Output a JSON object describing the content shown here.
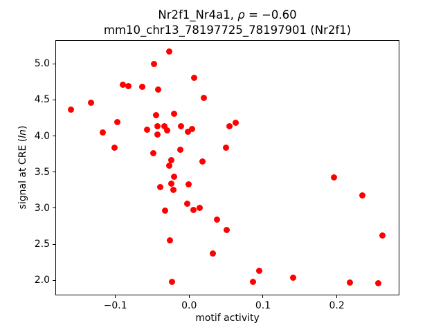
{
  "title": {
    "line1_prefix": "Nr2f1_Nr4a1, ",
    "line1_rho": "ρ",
    "line1_suffix": " = −0.60",
    "line2": "mm10_chr13_78197725_78197901 (Nr2f1)"
  },
  "axes": {
    "x_label": "motif activity",
    "y_label_prefix": "signal at CRE (",
    "y_label_italic": "ln",
    "y_label_suffix": ")"
  },
  "chart_data": {
    "type": "scatter",
    "title": "Nr2f1_Nr4a1, ρ = −0.60\nmm10_chr13_78197725_78197901 (Nr2f1)",
    "xlabel": "motif activity",
    "ylabel": "signal at CRE (ln)",
    "marker_color": "#ff0000",
    "marker_size_px": 9,
    "grid": false,
    "legend": null,
    "xlim": [
      -0.1812,
      0.2847
    ],
    "ylim": [
      1.792,
      5.329
    ],
    "x_ticks": [
      -0.1,
      0.0,
      0.1,
      0.2
    ],
    "x_tick_labels": [
      "−0.1",
      "0.0",
      "0.1",
      "0.2"
    ],
    "y_ticks": [
      2.0,
      2.5,
      3.0,
      3.5,
      4.0,
      4.5,
      5.0
    ],
    "y_tick_labels": [
      "2.0",
      "2.5",
      "3.0",
      "3.5",
      "4.0",
      "4.5",
      "5.0"
    ],
    "points": [
      [
        -0.027,
        5.17
      ],
      [
        -0.048,
        5.0
      ],
      [
        0.007,
        4.81
      ],
      [
        0.02,
        4.53
      ],
      [
        -0.09,
        4.71
      ],
      [
        -0.082,
        4.69
      ],
      [
        -0.064,
        4.68
      ],
      [
        -0.042,
        4.64
      ],
      [
        -0.16,
        4.37
      ],
      [
        -0.133,
        4.46
      ],
      [
        -0.097,
        4.19
      ],
      [
        -0.117,
        4.05
      ],
      [
        -0.101,
        3.84
      ],
      [
        -0.045,
        4.29
      ],
      [
        -0.02,
        4.31
      ],
      [
        -0.057,
        4.09
      ],
      [
        -0.043,
        4.14
      ],
      [
        -0.034,
        4.14
      ],
      [
        -0.03,
        4.08
      ],
      [
        -0.043,
        4.02
      ],
      [
        -0.011,
        4.14
      ],
      [
        -0.002,
        4.06
      ],
      [
        0.004,
        4.1
      ],
      [
        -0.012,
        3.81
      ],
      [
        -0.049,
        3.76
      ],
      [
        -0.024,
        3.67
      ],
      [
        -0.027,
        3.59
      ],
      [
        -0.02,
        3.44
      ],
      [
        -0.039,
        3.29
      ],
      [
        -0.024,
        3.34
      ],
      [
        -0.021,
        3.25
      ],
      [
        -0.001,
        3.33
      ],
      [
        -0.003,
        3.06
      ],
      [
        -0.033,
        2.97
      ],
      [
        0.006,
        2.98
      ],
      [
        0.014,
        3.0
      ],
      [
        0.038,
        2.84
      ],
      [
        0.051,
        2.7
      ],
      [
        0.032,
        2.37
      ],
      [
        0.055,
        4.14
      ],
      [
        0.063,
        4.18
      ],
      [
        0.05,
        3.84
      ],
      [
        0.018,
        3.65
      ],
      [
        -0.026,
        2.55
      ],
      [
        -0.023,
        1.98
      ],
      [
        0.095,
        2.13
      ],
      [
        0.086,
        1.98
      ],
      [
        0.141,
        2.04
      ],
      [
        0.196,
        3.43
      ],
      [
        0.235,
        3.18
      ],
      [
        0.262,
        2.62
      ],
      [
        0.218,
        1.97
      ],
      [
        0.256,
        1.96
      ]
    ]
  }
}
